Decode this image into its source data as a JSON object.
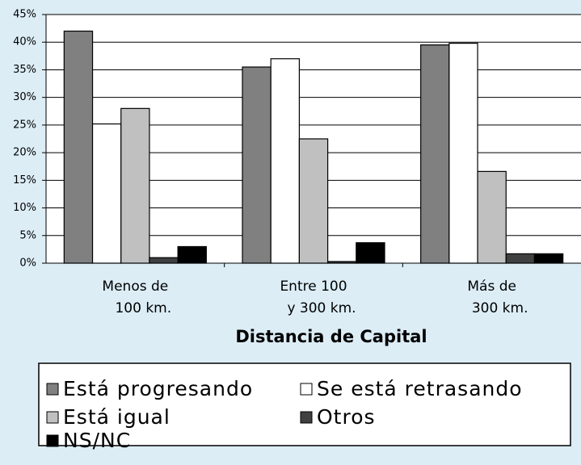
{
  "chart_data": {
    "type": "bar",
    "x_label": "Distancia de Capital",
    "categories": [
      [
        "Menos de",
        "100 km."
      ],
      [
        "Entre 100",
        "y 300 km."
      ],
      [
        "Más de",
        "300 km."
      ]
    ],
    "series": [
      {
        "name": "Está progresando",
        "color": "#808080",
        "values": [
          42,
          35.5,
          39.5
        ]
      },
      {
        "name": "Se está retrasando",
        "color": "#ffffff",
        "values": [
          25.2,
          37,
          39.8
        ]
      },
      {
        "name": "Está igual",
        "color": "#c0c0c0",
        "values": [
          28,
          22.5,
          16.6
        ]
      },
      {
        "name": "Otros",
        "color": "#404040",
        "values": [
          1,
          0.3,
          1.7
        ]
      },
      {
        "name": "NS/NC",
        "color": "#000000",
        "values": [
          3,
          3.7,
          1.7
        ]
      }
    ],
    "ylim": [
      0,
      45
    ],
    "yticks": [
      {
        "value": 0,
        "label": "0%"
      },
      {
        "value": 5,
        "label": "5%"
      },
      {
        "value": 10,
        "label": "10%"
      },
      {
        "value": 15,
        "label": "15%"
      },
      {
        "value": 20,
        "label": "20%"
      },
      {
        "value": 25,
        "label": "25%"
      },
      {
        "value": 30,
        "label": "30%"
      },
      {
        "value": 35,
        "label": "35%"
      },
      {
        "value": 40,
        "label": "40%"
      },
      {
        "value": 45,
        "label": "45%"
      }
    ],
    "grid": true
  }
}
